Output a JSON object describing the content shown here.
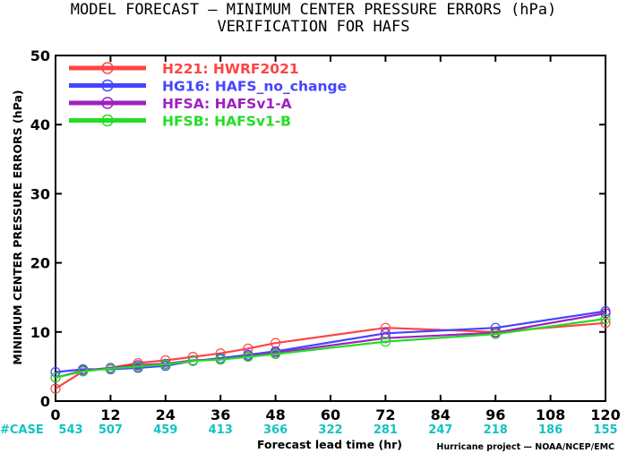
{
  "chart_data": {
    "type": "line",
    "title_line1": "MODEL FORECAST — MINIMUM CENTER PRESSURE ERRORS (hPa)",
    "title_line2": "VERIFICATION FOR HAFS",
    "xlabel": "Forecast lead time (hr)",
    "ylabel": "MINIMUM CENTER PRESSURE ERRORS (hPa)",
    "xlim": [
      0,
      120
    ],
    "ylim": [
      0,
      50
    ],
    "x_ticks": [
      0,
      12,
      24,
      36,
      48,
      60,
      72,
      84,
      96,
      108,
      120
    ],
    "y_ticks": [
      0,
      10,
      20,
      30,
      40,
      50
    ],
    "grid": false,
    "legend_position": "top-left",
    "case_label": "#CASE",
    "case_counts": [
      543,
      507,
      459,
      413,
      366,
      322,
      281,
      247,
      218,
      186,
      155
    ],
    "credit": "Hurricane project — NOAA/NCEP/EMC",
    "series": [
      {
        "name": "H221: HWRF2021",
        "color": "#ff4444",
        "x": [
          0,
          6,
          12,
          18,
          24,
          30,
          36,
          42,
          48,
          72,
          96,
          120
        ],
        "y": [
          1.8,
          4.3,
          4.8,
          5.5,
          5.9,
          6.4,
          6.9,
          7.6,
          8.4,
          10.6,
          10.0,
          11.3
        ]
      },
      {
        "name": "HG16: HAFS_no_change",
        "color": "#4444ff",
        "x": [
          0,
          6,
          12,
          18,
          24,
          30,
          36,
          42,
          48,
          72,
          96,
          120
        ],
        "y": [
          4.2,
          4.6,
          4.6,
          4.8,
          5.1,
          5.8,
          6.2,
          6.7,
          7.2,
          9.8,
          10.6,
          13.0
        ]
      },
      {
        "name": "HFSA: HAFSv1-A",
        "color": "#a020c0",
        "x": [
          0,
          6,
          12,
          18,
          24,
          30,
          36,
          42,
          48,
          72,
          96,
          120
        ],
        "y": [
          3.4,
          4.4,
          4.8,
          5.2,
          5.4,
          5.9,
          6.0,
          6.5,
          7.0,
          9.1,
          9.9,
          12.7
        ]
      },
      {
        "name": "HFSB: HAFSv1-B",
        "color": "#22dd22",
        "x": [
          0,
          6,
          12,
          18,
          24,
          30,
          36,
          42,
          48,
          72,
          96,
          120
        ],
        "y": [
          3.4,
          4.3,
          4.7,
          5.0,
          5.3,
          5.8,
          6.0,
          6.4,
          6.8,
          8.6,
          9.7,
          11.9
        ]
      }
    ]
  }
}
